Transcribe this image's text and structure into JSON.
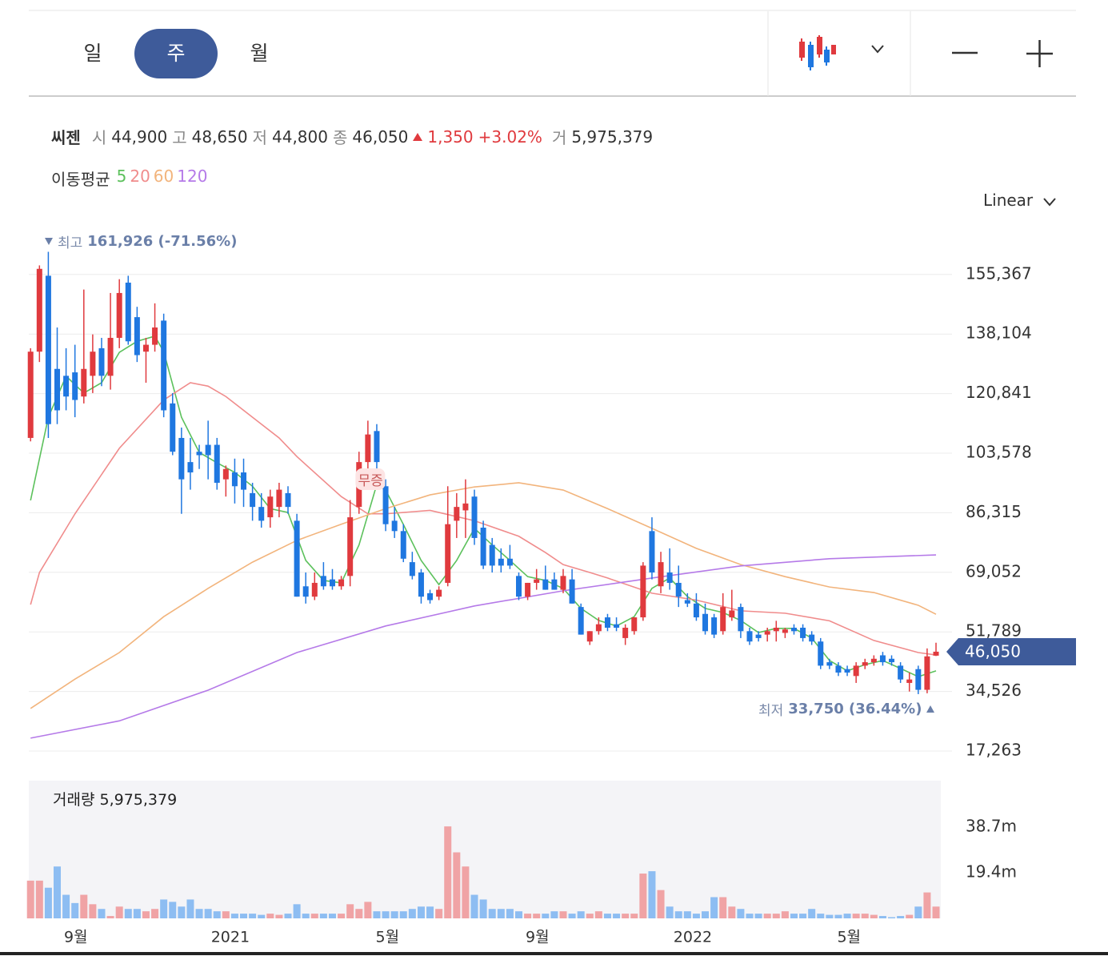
{
  "chart_data": {
    "type": "candlestick",
    "name": "씨젠",
    "periods": [
      "일",
      "주",
      "월"
    ],
    "selected_period": 1,
    "quote": [
      {
        "label": "시",
        "value": "44,900"
      },
      {
        "label": "고",
        "value": "48,650"
      },
      {
        "label": "저",
        "value": "44,800"
      },
      {
        "label": "종",
        "value": "46,050"
      }
    ],
    "change": "1,350",
    "change_pct": "+3.02%",
    "volume_label": "거",
    "volume_total": "5,975,379",
    "ma_title": "이동평균",
    "scale_mode": "Linear",
    "up_color": "#e03a3e",
    "down_color": "#1f77e0",
    "volume_up_color": "#f0a3a5",
    "volume_down_color": "#8dbdf2",
    "xlim": [
      -0.2,
      102.9
    ],
    "xticks": [
      {
        "value": 5.1,
        "label": "9월"
      },
      {
        "value": 22.5,
        "label": "2021"
      },
      {
        "value": 40.2,
        "label": "5월"
      },
      {
        "value": 57.1,
        "label": "9월"
      },
      {
        "value": 74.6,
        "label": "2022"
      },
      {
        "value": 92.2,
        "label": "5월"
      }
    ],
    "ylim": [
      12158,
      167620
    ],
    "yticks": [
      {
        "value": 17263,
        "label": "17,263"
      },
      {
        "value": 34526,
        "label": "34,526"
      },
      {
        "value": 51789,
        "label": "51,789"
      },
      {
        "value": 69052,
        "label": "69,052"
      },
      {
        "value": 86315,
        "label": "86,315"
      },
      {
        "value": 103578,
        "label": "103,578"
      },
      {
        "value": 120841,
        "label": "120,841"
      },
      {
        "value": 138104,
        "label": "138,104"
      },
      {
        "value": 155367,
        "label": "155,367"
      }
    ],
    "grid": true,
    "open": [
      108000.0,
      133000.0,
      155000.0,
      128000.0,
      126000.0,
      127000.0,
      120000.0,
      126000.0,
      134000.0,
      126000.0,
      137000.0,
      153000.0,
      143000.0,
      133000.0,
      135000.0,
      142000.0,
      118000.0,
      108000.0,
      101000.0,
      104000.0,
      106000.0,
      106000.0,
      96000.0,
      98000.0,
      98000.0,
      92000.0,
      88000.0,
      85000.0,
      88000.0,
      92000.0,
      84000.0,
      65000.0,
      62000.0,
      68000.0,
      67000.0,
      65000.0,
      68000.0,
      88000.0,
      101000.0,
      110000.0,
      94000.0,
      84000.0,
      81000.0,
      72000.0,
      69000.0,
      63000.0,
      62000.0,
      66000.0,
      84000.0,
      87000.0,
      91000.0,
      82000.0,
      77000.0,
      73000.0,
      73000.0,
      68000.0,
      62000.0,
      66000.0,
      67000.0,
      67000.0,
      64000.0,
      67000.0,
      59000.0,
      49000.0,
      52000.0,
      56000.0,
      54000.0,
      50000.0,
      52000.0,
      56000.0,
      81000.0,
      65000.0,
      69000.0,
      66000.0,
      61000.0,
      60000.0,
      57000.0,
      56000.0,
      52000.0,
      56000.0,
      59000.0,
      52000.0,
      51000.0,
      51000.0,
      52000.0,
      51500.0,
      53000.0,
      53000.0,
      51000.0,
      49000.0,
      43000.0,
      42000.0,
      41000.0,
      39000.0,
      42000.0,
      43000.0,
      45000.0,
      44000.0,
      42000.0,
      37000.0,
      41000.0,
      35000.0,
      44900.0
    ],
    "high": [
      134000.0,
      158000.0,
      161926.0,
      140000.0,
      134000.0,
      135000.0,
      151000.0,
      138000.0,
      137000.0,
      150000.0,
      154000.0,
      155000.0,
      146000.0,
      137000.0,
      147000.0,
      144000.0,
      121000.0,
      111000.0,
      108000.0,
      106000.0,
      113000.0,
      108000.0,
      100000.0,
      102000.0,
      102000.0,
      95000.0,
      92000.0,
      93000.0,
      95000.0,
      94000.0,
      86000.0,
      69000.0,
      69000.0,
      72000.0,
      70000.0,
      68000.0,
      90000.0,
      104000.0,
      113000.0,
      112000.0,
      96000.0,
      88000.0,
      83000.0,
      75000.0,
      70000.0,
      64000.0,
      65000.0,
      94000.0,
      92000.0,
      96000.0,
      93000.0,
      84000.0,
      79000.0,
      76000.0,
      77000.0,
      69000.0,
      66000.0,
      70000.0,
      71000.0,
      69000.0,
      70000.0,
      70000.0,
      60000.0,
      52000.0,
      56000.0,
      57000.0,
      56000.0,
      54000.0,
      56000.0,
      72000.0,
      85000.0,
      75000.0,
      76000.0,
      71000.0,
      63000.0,
      63000.0,
      60000.0,
      57000.0,
      63000.0,
      64000.0,
      60000.0,
      53000.0,
      52000.0,
      53000.0,
      55000.0,
      53000.0,
      54000.0,
      54000.0,
      52000.0,
      50000.0,
      44000.0,
      43000.0,
      42000.0,
      43000.0,
      44000.0,
      45000.0,
      46000.0,
      45000.0,
      43000.0,
      40000.0,
      42000.0,
      47000.0,
      48650.0
    ],
    "low": [
      107000.0,
      130000.0,
      108000.0,
      112000.0,
      116000.0,
      114000.0,
      118000.0,
      121000.0,
      123000.0,
      122000.0,
      134000.0,
      135000.0,
      130000.0,
      124000.0,
      133000.0,
      114000.0,
      103000.0,
      86000.0,
      93000.0,
      99000.0,
      96000.0,
      93000.0,
      91000.0,
      89000.0,
      88000.0,
      84000.0,
      82000.0,
      82000.0,
      85000.0,
      86000.0,
      62000.0,
      60000.0,
      61000.0,
      64000.0,
      64000.0,
      64000.0,
      65000.0,
      86000.0,
      98000.0,
      94000.0,
      81000.0,
      79000.0,
      72000.0,
      67000.0,
      60000.0,
      60000.0,
      61000.0,
      65000.0,
      79000.0,
      79000.0,
      77000.0,
      70000.0,
      69000.0,
      69000.0,
      70000.0,
      61000.0,
      61000.0,
      64000.0,
      64000.0,
      64000.0,
      63000.0,
      60000.0,
      51000.0,
      48000.0,
      51000.0,
      52000.0,
      52000.0,
      48000.0,
      51000.0,
      55000.0,
      67000.0,
      63000.0,
      64000.0,
      59000.0,
      59000.0,
      55000.0,
      51000.0,
      50000.0,
      51000.0,
      55000.0,
      50000.0,
      48000.0,
      49000.0,
      49000.0,
      49000.0,
      50000.0,
      51000.0,
      49000.0,
      48000.0,
      41000.0,
      41000.0,
      39000.0,
      39000.0,
      37000.0,
      41000.0,
      42000.0,
      42000.0,
      42000.0,
      37000.0,
      34500.0,
      33750.0,
      34000.0,
      44800.0
    ],
    "close": [
      133000.0,
      157000.0,
      112000.0,
      116000.0,
      120000.0,
      119000.0,
      128000.0,
      133000.0,
      126000.0,
      137000.0,
      150000.0,
      136000.0,
      132000.0,
      135000.0,
      140000.0,
      116000.0,
      104000.0,
      96000.0,
      98000.0,
      103000.0,
      103000.0,
      95000.0,
      99000.0,
      94000.0,
      93000.0,
      88000.0,
      84000.0,
      91000.0,
      93000.0,
      88000.0,
      62000.0,
      62000.0,
      66000.0,
      65000.0,
      65000.0,
      67000.0,
      85000.0,
      101000.0,
      109000.0,
      101000.0,
      83000.0,
      81000.0,
      73000.0,
      68000.0,
      62000.0,
      61000.0,
      64000.0,
      83000.0,
      88000.0,
      89000.0,
      79000.0,
      71000.0,
      71000.0,
      71000.0,
      71000.0,
      62000.0,
      66000.0,
      67000.0,
      64000.0,
      64000.0,
      68000.0,
      60000.0,
      51000.0,
      52000.0,
      54000.0,
      53000.0,
      53000.0,
      53000.0,
      56000.0,
      71000.0,
      69000.0,
      72000.0,
      66000.0,
      62000.0,
      60000.0,
      56000.0,
      52000.0,
      51000.0,
      59000.0,
      58000.0,
      52000.0,
      49000.0,
      50000.0,
      52000.0,
      53000.0,
      52500.0,
      52000.0,
      50000.0,
      49000.0,
      42000.0,
      42000.0,
      40000.0,
      40000.0,
      42000.0,
      43000.0,
      44000.0,
      43000.0,
      43000.0,
      38000.0,
      38000.0,
      35000.0,
      44700.0,
      46050.0
    ],
    "ma": [
      {
        "name": "5",
        "color": "#5cc15c",
        "x": [
          0,
          2,
          4,
          6,
          8,
          10,
          12,
          14,
          15,
          17,
          19,
          21,
          23,
          25,
          27,
          29,
          31,
          33,
          35,
          37,
          39,
          40,
          42,
          44,
          46,
          48,
          50,
          52,
          54,
          56,
          58,
          60,
          62,
          64,
          66,
          68,
          70,
          72,
          74,
          76,
          78,
          80,
          82,
          84,
          86,
          88,
          90,
          92,
          94,
          96,
          98,
          100,
          102
        ],
        "values": [
          89900.0,
          114000.0,
          125900.0,
          121000.0,
          124000.0,
          132800.0,
          136000.0,
          137500.0,
          133000.0,
          114000.0,
          103800.0,
          100800.0,
          98000.0,
          94000.0,
          87500.0,
          86400.0,
          72500.0,
          66700.0,
          66000.0,
          77000.0,
          94500.0,
          92900.0,
          82900.0,
          72500.0,
          65500.0,
          72500.0,
          81800.0,
          77000.0,
          72500.0,
          67800.0,
          66700.0,
          64400.0,
          58600.0,
          55100.0,
          53500.0,
          56200.0,
          64400.0,
          67400.0,
          62000.0,
          58600.0,
          57400.0,
          55100.0,
          51600.0,
          52800.0,
          52800.0,
          50000.0,
          43500.0,
          40500.0,
          42300.0,
          43500.0,
          41200.0,
          38800.0,
          40500.0
        ]
      },
      {
        "name": "20",
        "color": "#f08c8c",
        "x": [
          0,
          1,
          5,
          10,
          15,
          18,
          20,
          22,
          25,
          28,
          30,
          35,
          38,
          40,
          45,
          50,
          55,
          58,
          60,
          63,
          65,
          70,
          75,
          80,
          85,
          90,
          95,
          100,
          102
        ],
        "values": [
          59700.0,
          69000.0,
          86000.0,
          105000.0,
          119000.0,
          124000.0,
          123000.0,
          120000.0,
          114000.0,
          108000.0,
          102600.0,
          91000.0,
          86000.0,
          86000.0,
          87000.0,
          84000.0,
          79500.0,
          74800.0,
          71300.0,
          69000.0,
          67400.0,
          63000.0,
          61000.0,
          57900.0,
          57200.0,
          55000.0,
          49300.0,
          45800.0,
          45100.0
        ]
      },
      {
        "name": "60",
        "color": "#f2b47c",
        "x": [
          0,
          5,
          10,
          15,
          20,
          25,
          30,
          35,
          40,
          45,
          50,
          55,
          60,
          65,
          70,
          75,
          80,
          85,
          90,
          95,
          100,
          102
        ],
        "values": [
          29600.0,
          38100.0,
          45800.0,
          56200.0,
          64400.0,
          72000.0,
          78300.0,
          83000.0,
          87500.0,
          91500.0,
          93800.0,
          95000.0,
          92900.0,
          87500.0,
          81800.0,
          76000.0,
          71300.0,
          67800.0,
          64800.0,
          63200.0,
          59500.0,
          56900.0
        ]
      },
      {
        "name": "120",
        "color": "#b57ae8",
        "x": [
          0,
          10,
          20,
          30,
          40,
          50,
          60,
          70,
          80,
          90,
          102
        ],
        "values": [
          21000.0,
          26000.0,
          34900.0,
          45800.0,
          53500.0,
          59300.0,
          63700.0,
          67400.0,
          70900.0,
          73000.0,
          74100.0
        ]
      }
    ],
    "high_marker": {
      "label": "최고",
      "text": "161,926 (-71.56%)"
    },
    "low_marker": {
      "label": "최저",
      "text": "33,750 (36.44%)"
    },
    "events": [
      {
        "x": 38.3,
        "label": "무증"
      }
    ],
    "last_price_label": "46,050",
    "volume": {
      "title": "거래량",
      "total": "5,975,379",
      "ylim": [
        0,
        58400000.0
      ],
      "yticks": [
        {
          "value": 38700000.0,
          "label": "38.7m"
        },
        {
          "value": 19400000.0,
          "label": "19.4m"
        }
      ],
      "values": [
        16000000.0,
        16000000.0,
        13000000.0,
        22000000.0,
        10000000.0,
        6500000.0,
        10000000.0,
        6000000.0,
        4000000.0,
        1000000.0,
        5000000.0,
        4000000.0,
        4000000.0,
        3000000.0,
        4000000.0,
        8000000.0,
        7000000.0,
        5000000.0,
        8000000.0,
        4000000.0,
        4000000.0,
        3000000.0,
        3000000.0,
        2000000.0,
        2000000.0,
        2000000.0,
        1500000.0,
        2000000.0,
        1500000.0,
        2000000.0,
        6000000.0,
        2000000.0,
        2000000.0,
        2000000.0,
        2000000.0,
        2000000.0,
        6000000.0,
        4000000.0,
        7000000.0,
        3000000.0,
        3000000.0,
        3000000.0,
        3000000.0,
        4000000.0,
        5000000.0,
        5000000.0,
        4000000.0,
        39000000.0,
        28000000.0,
        22000000.0,
        10000000.0,
        8000000.0,
        4000000.0,
        4000000.0,
        4000000.0,
        3000000.0,
        2000000.0,
        2000000.0,
        2000000.0,
        3000000.0,
        3000000.0,
        2000000.0,
        3000000.0,
        2000000.0,
        3000000.0,
        2000000.0,
        2000000.0,
        2000000.0,
        2000000.0,
        19000000.0,
        20000000.0,
        12000000.0,
        5000000.0,
        3000000.0,
        3000000.0,
        2000000.0,
        3000000.0,
        9000000.0,
        9000000.0,
        5000000.0,
        4000000.0,
        2000000.0,
        2000000.0,
        2000000.0,
        2000000.0,
        3000000.0,
        2000000.0,
        2000000.0,
        4000000.0,
        2000000.0,
        1500000.0,
        1500000.0,
        2000000.0,
        2000000.0,
        2000000.0,
        1500000.0,
        1000000.0,
        500000.0,
        1000000.0,
        1500000.0,
        5000000.0,
        11000000.0,
        5000000.0
      ]
    }
  }
}
